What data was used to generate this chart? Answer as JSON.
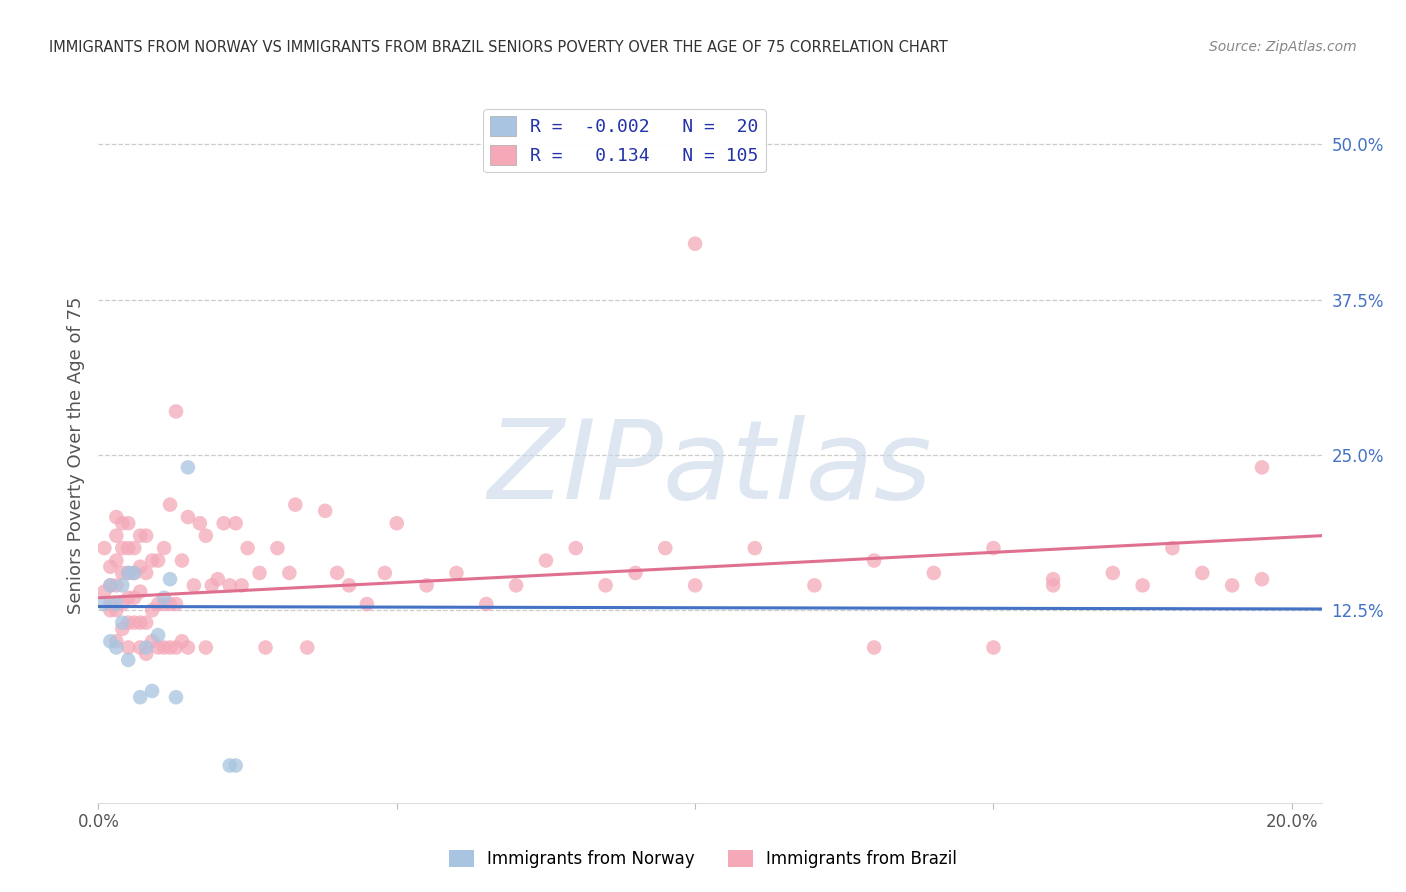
{
  "title": "IMMIGRANTS FROM NORWAY VS IMMIGRANTS FROM BRAZIL SENIORS POVERTY OVER THE AGE OF 75 CORRELATION CHART",
  "source": "Source: ZipAtlas.com",
  "ylabel": "Seniors Poverty Over the Age of 75",
  "xlim": [
    0.0,
    0.205
  ],
  "ylim": [
    -0.03,
    0.53
  ],
  "xticks": [
    0.0,
    0.05,
    0.1,
    0.15,
    0.2
  ],
  "xtick_labels": [
    "0.0%",
    "",
    "",
    "",
    "20.0%"
  ],
  "ytick_labels_right": [
    "50.0%",
    "37.5%",
    "25.0%",
    "12.5%"
  ],
  "ytick_positions_right": [
    0.5,
    0.375,
    0.25,
    0.125
  ],
  "norway_R": -0.002,
  "norway_N": 20,
  "brazil_R": 0.134,
  "brazil_N": 105,
  "norway_color": "#a8c4e0",
  "brazil_color": "#f4a8b8",
  "norway_line_color": "#4472c4",
  "brazil_line_color": "#e07090",
  "norway_scatter": {
    "x": [
      0.001,
      0.002,
      0.002,
      0.003,
      0.003,
      0.004,
      0.004,
      0.005,
      0.005,
      0.006,
      0.007,
      0.008,
      0.009,
      0.01,
      0.011,
      0.012,
      0.013,
      0.015,
      0.022,
      0.023
    ],
    "y": [
      0.13,
      0.145,
      0.1,
      0.13,
      0.095,
      0.145,
      0.115,
      0.155,
      0.085,
      0.155,
      0.055,
      0.095,
      0.06,
      0.105,
      0.135,
      0.15,
      0.055,
      0.24,
      0.0,
      0.0
    ]
  },
  "brazil_scatter": {
    "x": [
      0.001,
      0.001,
      0.002,
      0.002,
      0.002,
      0.002,
      0.003,
      0.003,
      0.003,
      0.003,
      0.003,
      0.003,
      0.004,
      0.004,
      0.004,
      0.004,
      0.004,
      0.005,
      0.005,
      0.005,
      0.005,
      0.005,
      0.005,
      0.006,
      0.006,
      0.006,
      0.006,
      0.007,
      0.007,
      0.007,
      0.007,
      0.007,
      0.008,
      0.008,
      0.008,
      0.008,
      0.009,
      0.009,
      0.009,
      0.01,
      0.01,
      0.01,
      0.011,
      0.011,
      0.011,
      0.012,
      0.012,
      0.012,
      0.013,
      0.013,
      0.013,
      0.014,
      0.014,
      0.015,
      0.015,
      0.016,
      0.017,
      0.018,
      0.018,
      0.019,
      0.02,
      0.021,
      0.022,
      0.023,
      0.024,
      0.025,
      0.027,
      0.028,
      0.03,
      0.032,
      0.033,
      0.035,
      0.038,
      0.04,
      0.042,
      0.045,
      0.048,
      0.05,
      0.055,
      0.06,
      0.065,
      0.07,
      0.075,
      0.08,
      0.085,
      0.09,
      0.095,
      0.1,
      0.11,
      0.12,
      0.13,
      0.14,
      0.15,
      0.16,
      0.17,
      0.175,
      0.18,
      0.185,
      0.19,
      0.195,
      0.1,
      0.13,
      0.15,
      0.16,
      0.195
    ],
    "y": [
      0.14,
      0.175,
      0.125,
      0.145,
      0.16,
      0.13,
      0.1,
      0.125,
      0.145,
      0.165,
      0.185,
      0.2,
      0.11,
      0.13,
      0.155,
      0.175,
      0.195,
      0.095,
      0.115,
      0.135,
      0.155,
      0.175,
      0.195,
      0.115,
      0.135,
      0.155,
      0.175,
      0.095,
      0.115,
      0.14,
      0.16,
      0.185,
      0.09,
      0.115,
      0.155,
      0.185,
      0.1,
      0.125,
      0.165,
      0.095,
      0.13,
      0.165,
      0.095,
      0.13,
      0.175,
      0.095,
      0.13,
      0.21,
      0.095,
      0.13,
      0.285,
      0.1,
      0.165,
      0.095,
      0.2,
      0.145,
      0.195,
      0.095,
      0.185,
      0.145,
      0.15,
      0.195,
      0.145,
      0.195,
      0.145,
      0.175,
      0.155,
      0.095,
      0.175,
      0.155,
      0.21,
      0.095,
      0.205,
      0.155,
      0.145,
      0.13,
      0.155,
      0.195,
      0.145,
      0.155,
      0.13,
      0.145,
      0.165,
      0.175,
      0.145,
      0.155,
      0.175,
      0.145,
      0.175,
      0.145,
      0.165,
      0.155,
      0.175,
      0.145,
      0.155,
      0.145,
      0.175,
      0.155,
      0.145,
      0.15,
      0.42,
      0.095,
      0.095,
      0.15,
      0.24
    ]
  },
  "brazil_line": {
    "x0": 0.0,
    "x1": 0.205,
    "y0": 0.135,
    "y1": 0.185
  },
  "norway_line": {
    "x0": 0.0,
    "x1": 0.205,
    "y0": 0.128,
    "y1": 0.126
  },
  "watermark_text": "ZIPatlas",
  "watermark_color": "#c8d8e8",
  "legend_norway_label": "Immigrants from Norway",
  "legend_brazil_label": "Immigrants from Brazil",
  "background_color": "#ffffff",
  "grid_color": "#cccccc",
  "title_color": "#333333",
  "axis_label_color": "#555555",
  "right_tick_color": "#4472c4"
}
